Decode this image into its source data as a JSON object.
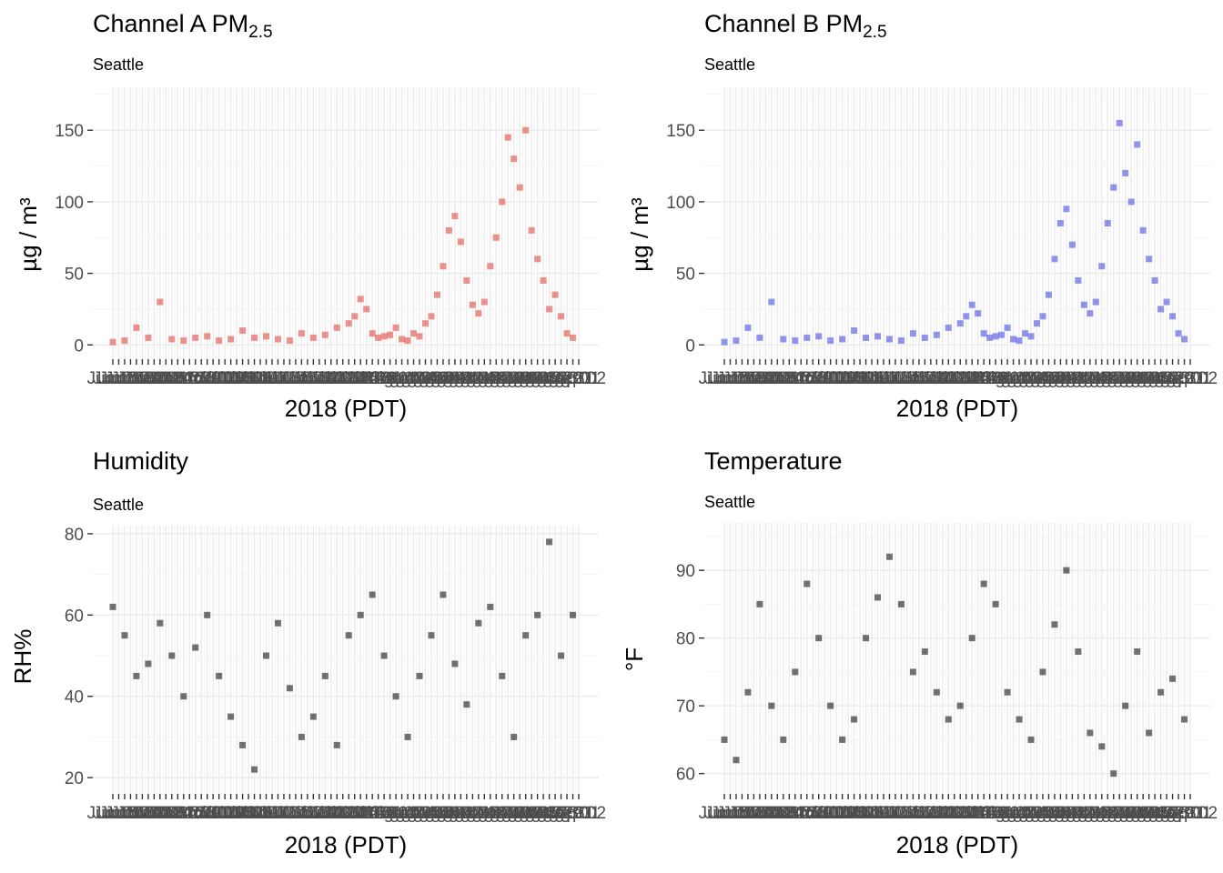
{
  "x_axis_title": "2018 (PDT)",
  "chart_data": [
    {
      "type": "scatter",
      "title": "Channel A PM",
      "title_sub": "2.5",
      "subtitle": "Seattle",
      "ylabel": "µg / m³",
      "xlabel": "2018 (PDT)",
      "color": "#e03c31",
      "ylim": [
        -10,
        180
      ],
      "y_ticks": [
        0,
        50,
        100,
        150
      ],
      "grid": true,
      "x_range_days": [
        "Jun 15",
        "Sep 2"
      ],
      "series": [
        {
          "name": "",
          "x_day": [
            0,
            2,
            4,
            6,
            8,
            10,
            12,
            14,
            16,
            18,
            20,
            22,
            24,
            26,
            28,
            30,
            32,
            34,
            36,
            38,
            40,
            41,
            42,
            43,
            44,
            45,
            46,
            47,
            48,
            49,
            50,
            51,
            52,
            53,
            54,
            55,
            56,
            57,
            58,
            59,
            60,
            61,
            62,
            63,
            64,
            65,
            66,
            67,
            68,
            69,
            70,
            71,
            72,
            73,
            74,
            75,
            76,
            77,
            78
          ],
          "y": [
            2,
            3,
            12,
            5,
            30,
            4,
            3,
            5,
            6,
            3,
            4,
            10,
            5,
            6,
            4,
            3,
            8,
            5,
            7,
            12,
            15,
            20,
            32,
            25,
            8,
            5,
            6,
            7,
            12,
            4,
            3,
            8,
            6,
            15,
            20,
            35,
            55,
            80,
            90,
            72,
            45,
            28,
            22,
            30,
            55,
            75,
            100,
            145,
            130,
            110,
            150,
            80,
            60,
            45,
            25,
            35,
            20,
            8,
            5
          ]
        }
      ]
    },
    {
      "type": "scatter",
      "title": "Channel B PM",
      "title_sub": "2.5",
      "subtitle": "Seattle",
      "ylabel": "µg / m³",
      "xlabel": "2018 (PDT)",
      "color": "#3a3fe0",
      "ylim": [
        -10,
        180
      ],
      "y_ticks": [
        0,
        50,
        100,
        150
      ],
      "grid": true,
      "x_range_days": [
        "Jun 15",
        "Sep 2"
      ],
      "series": [
        {
          "name": "",
          "x_day": [
            0,
            2,
            4,
            6,
            8,
            10,
            12,
            14,
            16,
            18,
            20,
            22,
            24,
            26,
            28,
            30,
            32,
            34,
            36,
            38,
            40,
            41,
            42,
            43,
            44,
            45,
            46,
            47,
            48,
            49,
            50,
            51,
            52,
            53,
            54,
            55,
            56,
            57,
            58,
            59,
            60,
            61,
            62,
            63,
            64,
            65,
            66,
            67,
            68,
            69,
            70,
            71,
            72,
            73,
            74,
            75,
            76,
            77,
            78
          ],
          "y": [
            2,
            3,
            12,
            5,
            30,
            4,
            3,
            5,
            6,
            3,
            4,
            10,
            5,
            6,
            4,
            3,
            8,
            5,
            7,
            12,
            15,
            20,
            28,
            22,
            8,
            5,
            6,
            7,
            12,
            4,
            3,
            8,
            6,
            15,
            20,
            35,
            60,
            85,
            95,
            70,
            45,
            28,
            22,
            30,
            55,
            85,
            110,
            155,
            120,
            100,
            140,
            80,
            60,
            45,
            25,
            30,
            20,
            8,
            4
          ]
        }
      ]
    },
    {
      "type": "scatter",
      "title": "Humidity",
      "title_sub": "",
      "subtitle": "Seattle",
      "ylabel": "RH%",
      "xlabel": "2018 (PDT)",
      "color": "#000000",
      "ylim": [
        16,
        82
      ],
      "y_ticks": [
        20,
        40,
        60,
        80
      ],
      "grid": true,
      "x_range_days": [
        "Jun 15",
        "Sep 2"
      ],
      "series": [
        {
          "name": "",
          "x_day": [
            0,
            2,
            4,
            6,
            8,
            10,
            12,
            14,
            16,
            18,
            20,
            22,
            24,
            26,
            28,
            30,
            32,
            34,
            36,
            38,
            40,
            42,
            44,
            46,
            48,
            50,
            52,
            54,
            56,
            58,
            60,
            62,
            64,
            66,
            68,
            70,
            72,
            74,
            76,
            78
          ],
          "y": [
            62,
            55,
            45,
            48,
            58,
            50,
            40,
            52,
            60,
            45,
            35,
            28,
            22,
            50,
            58,
            42,
            30,
            35,
            45,
            28,
            55,
            60,
            65,
            50,
            40,
            30,
            45,
            55,
            65,
            48,
            38,
            58,
            62,
            45,
            30,
            55,
            60,
            78,
            50,
            60
          ]
        }
      ]
    },
    {
      "type": "scatter",
      "title": "Temperature",
      "title_sub": "",
      "subtitle": "Seattle",
      "ylabel": "°F",
      "xlabel": "2018 (PDT)",
      "color": "#000000",
      "ylim": [
        57,
        97
      ],
      "y_ticks": [
        60,
        70,
        80,
        90
      ],
      "grid": true,
      "x_range_days": [
        "Jun 15",
        "Sep 2"
      ],
      "series": [
        {
          "name": "",
          "x_day": [
            0,
            2,
            4,
            6,
            8,
            10,
            12,
            14,
            16,
            18,
            20,
            22,
            24,
            26,
            28,
            30,
            32,
            34,
            36,
            38,
            40,
            42,
            44,
            46,
            48,
            50,
            52,
            54,
            56,
            58,
            60,
            62,
            64,
            66,
            68,
            70,
            72,
            74,
            76,
            78
          ],
          "y": [
            65,
            62,
            72,
            85,
            70,
            65,
            75,
            88,
            80,
            70,
            65,
            68,
            80,
            86,
            92,
            85,
            75,
            78,
            72,
            68,
            70,
            80,
            88,
            85,
            72,
            68,
            65,
            75,
            82,
            90,
            78,
            66,
            64,
            60,
            70,
            78,
            66,
            72,
            74,
            68
          ]
        }
      ]
    }
  ],
  "x_tick_labels": [
    "Jun 15",
    "Jun 16",
    "Jun 17",
    "Jun 18",
    "Jun 19",
    "Jun 20",
    "Jun 21",
    "Jun 22",
    "Jun 23",
    "Jun 24",
    "Jun 25",
    "Jun 26",
    "Jun 27",
    "Jun 28",
    "Jun 29",
    "Jun 30",
    "Jul 01",
    "Jul 02",
    "Jul 03",
    "Jul 04",
    "Jul 05",
    "Jul 06",
    "Jul 07",
    "Jul 08",
    "Jul 09",
    "Jul 10",
    "Jul 11",
    "Jul 12",
    "Jul 13",
    "Jul 14",
    "Jul 15",
    "Jul 16",
    "Jul 17",
    "Jul 18",
    "Jul 19",
    "Jul 20",
    "Jul 21",
    "Jul 22",
    "Jul 23",
    "Jul 24",
    "Jul 25",
    "Jul 26",
    "Jul 27",
    "Jul 28",
    "Jul 29",
    "Jul 30",
    "Jul 31",
    "Aug 01",
    "Aug 02",
    "Aug 03",
    "Aug 04",
    "Aug 05",
    "Aug 06",
    "Aug 07",
    "Aug 08",
    "Aug 09",
    "Aug 10",
    "Aug 11",
    "Aug 12",
    "Aug 13",
    "Aug 14",
    "Aug 15",
    "Aug 16",
    "Aug 17",
    "Aug 18",
    "Aug 19",
    "Aug 20",
    "Aug 21",
    "Aug 22",
    "Aug 23",
    "Aug 24",
    "Aug 25",
    "Aug 26",
    "Aug 27",
    "Aug 28",
    "Aug 29",
    "Aug 30",
    "Aug 31",
    "Sep 01",
    "Sep 02"
  ]
}
